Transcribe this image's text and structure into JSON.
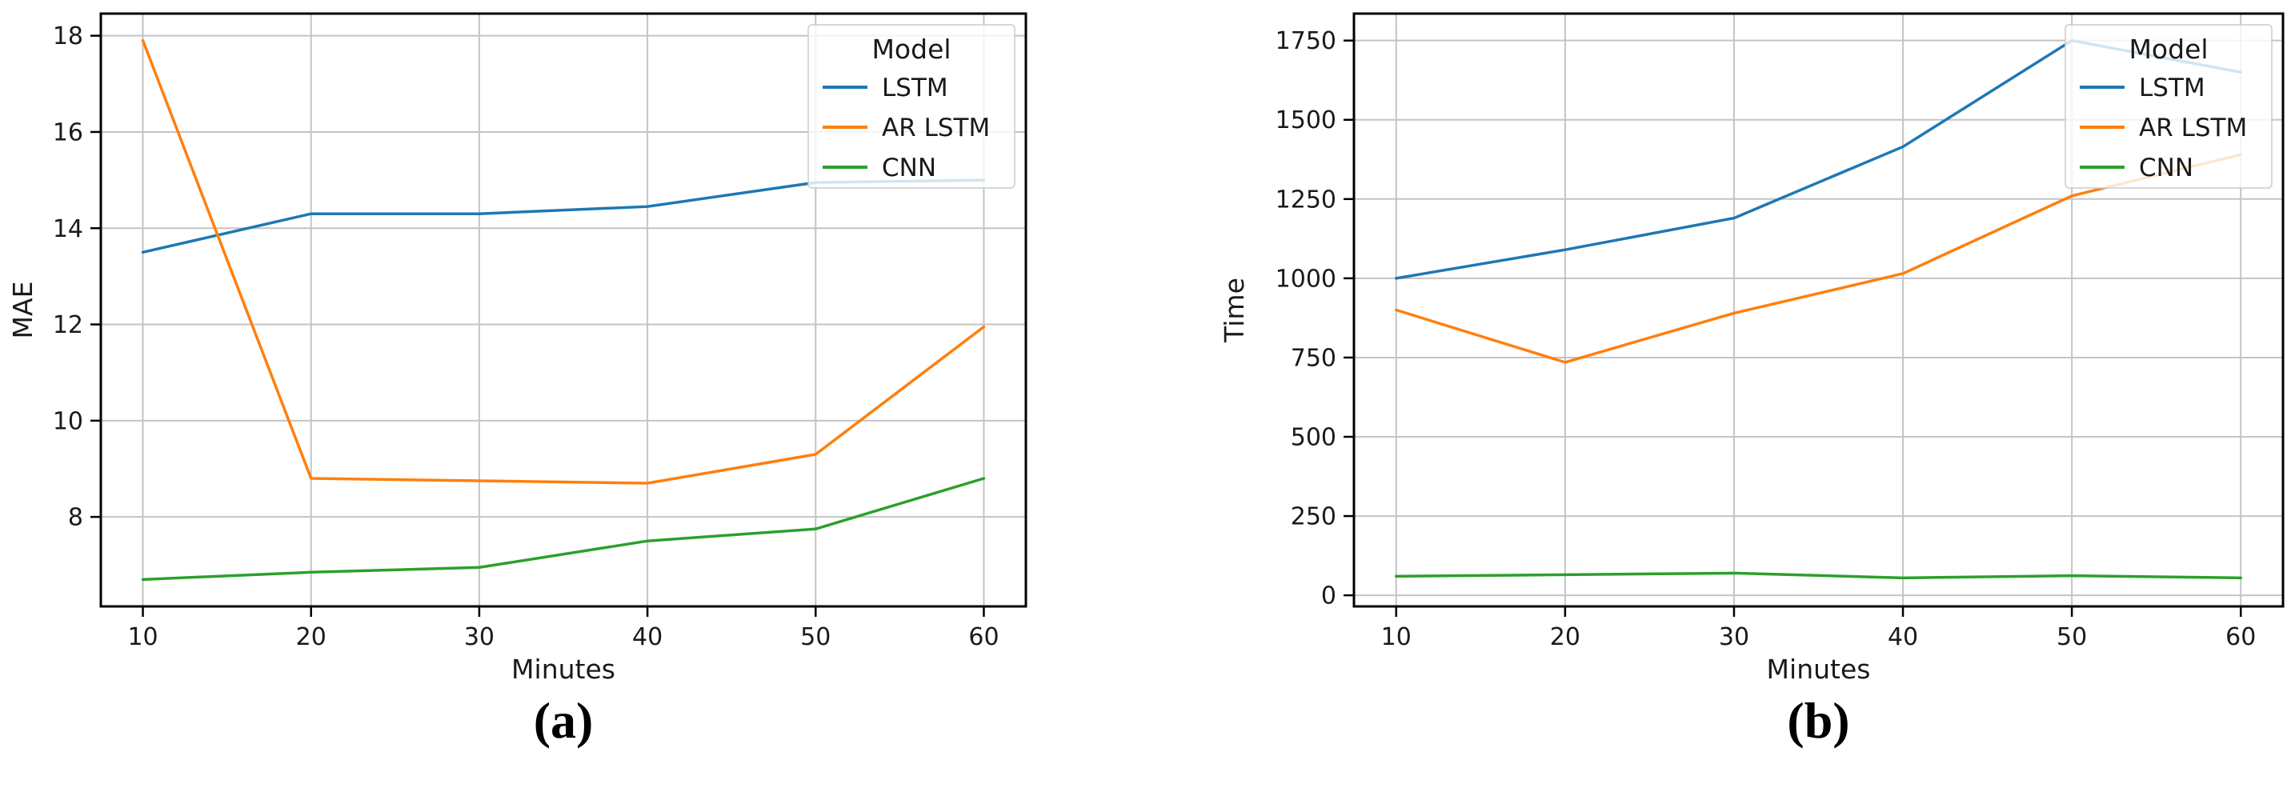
{
  "captions": {
    "a": "(a)",
    "b": "(b)"
  },
  "palette": {
    "lstm_blue": "#1f77b4",
    "ar_lstm_orange": "#ff7f0e",
    "cnn_green": "#2ca02c",
    "grid_gray": "#c4c4c4",
    "spine_black": "#000000",
    "legend_border": "#cccccc",
    "text": "#1a1a1a"
  },
  "chart_data": [
    {
      "id": "a",
      "type": "line",
      "title": "",
      "xlabel": "Minutes",
      "ylabel": "MAE",
      "x": [
        10,
        20,
        30,
        40,
        50,
        60
      ],
      "xticks": [
        10,
        20,
        30,
        40,
        50,
        60
      ],
      "yticks": [
        8,
        10,
        12,
        14,
        16,
        18
      ],
      "xlim": [
        7.5,
        62.5
      ],
      "ylim": [
        6.14,
        18.46
      ],
      "grid": true,
      "legend": {
        "title": "Model",
        "position": "upper right"
      },
      "series": [
        {
          "name": "LSTM",
          "color": "#1f77b4",
          "values": [
            13.5,
            14.3,
            14.3,
            14.45,
            14.95,
            15.0
          ]
        },
        {
          "name": "AR LSTM",
          "color": "#ff7f0e",
          "values": [
            17.9,
            8.8,
            8.75,
            8.7,
            9.3,
            11.95
          ]
        },
        {
          "name": "CNN",
          "color": "#2ca02c",
          "values": [
            6.7,
            6.85,
            6.95,
            7.5,
            7.75,
            8.8
          ]
        }
      ]
    },
    {
      "id": "b",
      "type": "line",
      "title": "",
      "xlabel": "Minutes",
      "ylabel": "Time",
      "x": [
        10,
        20,
        30,
        40,
        50,
        60
      ],
      "xticks": [
        10,
        20,
        30,
        40,
        50,
        60
      ],
      "yticks": [
        0,
        250,
        500,
        750,
        1000,
        1250,
        1500,
        1750
      ],
      "xlim": [
        7.5,
        62.5
      ],
      "ylim": [
        -35,
        1835
      ],
      "grid": true,
      "legend": {
        "title": "Model",
        "position": "upper right"
      },
      "series": [
        {
          "name": "LSTM",
          "color": "#1f77b4",
          "values": [
            1000,
            1090,
            1190,
            1415,
            1750,
            1650
          ]
        },
        {
          "name": "AR LSTM",
          "color": "#ff7f0e",
          "values": [
            900,
            735,
            890,
            1015,
            1260,
            1390
          ]
        },
        {
          "name": "CNN",
          "color": "#2ca02c",
          "values": [
            60,
            65,
            70,
            55,
            62,
            55
          ]
        }
      ]
    }
  ]
}
